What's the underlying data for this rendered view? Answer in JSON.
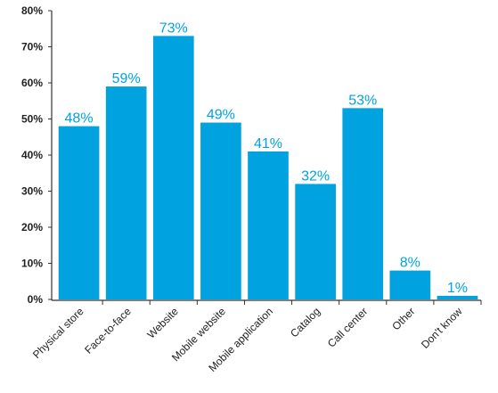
{
  "chart_data": {
    "type": "bar",
    "title": "",
    "xlabel": "",
    "ylabel": "",
    "categories": [
      "Physical store",
      "Face-to-face",
      "Website",
      "Mobile website",
      "Mobile application",
      "Catalog",
      "Call center",
      "Other",
      "Don't know"
    ],
    "values": [
      48,
      59,
      73,
      49,
      41,
      32,
      53,
      8,
      1
    ],
    "data_labels": [
      "48%",
      "59%",
      "73%",
      "49%",
      "41%",
      "32%",
      "53%",
      "8%",
      "1%"
    ],
    "yticks": [
      "0%",
      "10%",
      "20%",
      "30%",
      "40%",
      "50%",
      "60%",
      "70%",
      "80%"
    ],
    "ylim": [
      0,
      80
    ],
    "grid": false,
    "legend": "none",
    "colors": {
      "bar": "#00a3e0",
      "label": "#00a3e0",
      "axis": "#333333"
    }
  }
}
